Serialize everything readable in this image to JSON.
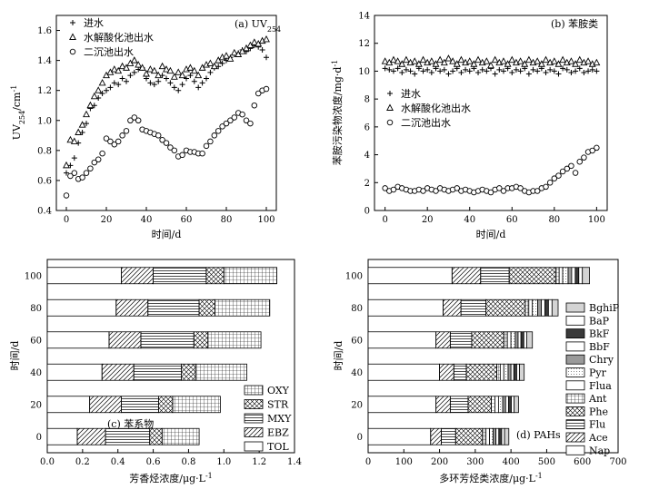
{
  "chart_data": [
    {
      "id": "a",
      "type": "scatter",
      "panel_label": "(a) UV",
      "panel_label_sub": "254",
      "xlabel": "时间/d",
      "ylabel_main": "UV",
      "ylabel_sub": "254",
      "ylabel_unit": "/cm",
      "ylabel_sup": "-1",
      "xlim": [
        -5,
        105
      ],
      "ylim": [
        0.4,
        1.7
      ],
      "xticks": [
        0,
        20,
        40,
        60,
        80,
        100
      ],
      "xtick_labels": [
        "0",
        "20",
        "40",
        "60",
        "80",
        "100"
      ],
      "yticks": [
        0.4,
        0.6,
        0.8,
        1.0,
        1.2,
        1.4,
        1.6
      ],
      "ytick_labels": [
        "0.4",
        "0.6",
        "0.8",
        "1.0",
        "1.2",
        "1.4",
        "1.6"
      ],
      "legend_position": "top-left",
      "series": [
        {
          "name": "进水",
          "marker": "plus",
          "x": [
            0,
            2,
            4,
            6,
            8,
            10,
            12,
            14,
            16,
            18,
            20,
            22,
            24,
            26,
            28,
            30,
            32,
            34,
            36,
            38,
            40,
            42,
            44,
            46,
            48,
            50,
            52,
            54,
            56,
            58,
            60,
            62,
            64,
            66,
            68,
            70,
            72,
            74,
            76,
            78,
            80,
            82,
            84,
            86,
            88,
            90,
            92,
            94,
            96,
            98,
            100
          ],
          "y": [
            0.65,
            0.7,
            0.75,
            0.85,
            0.92,
            0.98,
            1.08,
            1.1,
            1.15,
            1.18,
            1.2,
            1.22,
            1.25,
            1.24,
            1.28,
            1.26,
            1.3,
            1.32,
            1.34,
            1.35,
            1.28,
            1.25,
            1.24,
            1.26,
            1.3,
            1.28,
            1.25,
            1.22,
            1.2,
            1.24,
            1.28,
            1.3,
            1.26,
            1.22,
            1.25,
            1.28,
            1.32,
            1.35,
            1.36,
            1.38,
            1.4,
            1.42,
            1.44,
            1.45,
            1.47,
            1.46,
            1.48,
            1.5,
            1.49,
            1.47,
            1.42
          ]
        },
        {
          "name": "水解酸化池出水",
          "marker": "triangle",
          "x": [
            0,
            2,
            4,
            6,
            8,
            10,
            12,
            14,
            16,
            18,
            20,
            22,
            24,
            26,
            28,
            30,
            32,
            34,
            36,
            38,
            40,
            42,
            44,
            46,
            48,
            50,
            52,
            54,
            56,
            58,
            60,
            62,
            64,
            66,
            68,
            70,
            72,
            74,
            76,
            78,
            80,
            82,
            84,
            86,
            88,
            90,
            92,
            94,
            96,
            98,
            100
          ],
          "y": [
            0.7,
            0.87,
            0.86,
            0.92,
            0.97,
            1.04,
            1.1,
            1.16,
            1.2,
            1.25,
            1.3,
            1.32,
            1.34,
            1.33,
            1.36,
            1.35,
            1.38,
            1.4,
            1.37,
            1.35,
            1.31,
            1.34,
            1.33,
            1.3,
            1.36,
            1.34,
            1.33,
            1.29,
            1.32,
            1.3,
            1.34,
            1.35,
            1.33,
            1.3,
            1.35,
            1.37,
            1.38,
            1.36,
            1.4,
            1.42,
            1.43,
            1.41,
            1.45,
            1.44,
            1.46,
            1.48,
            1.5,
            1.52,
            1.51,
            1.53,
            1.54
          ]
        },
        {
          "name": "二沉池出水",
          "marker": "circle",
          "x": [
            0,
            2,
            4,
            6,
            8,
            10,
            12,
            14,
            16,
            18,
            20,
            22,
            24,
            26,
            28,
            30,
            32,
            34,
            36,
            38,
            40,
            42,
            44,
            46,
            48,
            50,
            52,
            54,
            56,
            58,
            60,
            62,
            64,
            66,
            68,
            70,
            72,
            74,
            76,
            78,
            80,
            82,
            84,
            86,
            88,
            90,
            92,
            94,
            96,
            98,
            100
          ],
          "y": [
            0.5,
            0.63,
            0.65,
            0.61,
            0.62,
            0.65,
            0.68,
            0.72,
            0.74,
            0.78,
            0.88,
            0.86,
            0.84,
            0.86,
            0.9,
            0.93,
            1.0,
            1.02,
            1.0,
            0.94,
            0.93,
            0.92,
            0.91,
            0.9,
            0.87,
            0.85,
            0.82,
            0.8,
            0.76,
            0.77,
            0.8,
            0.79,
            0.79,
            0.78,
            0.78,
            0.83,
            0.86,
            0.9,
            0.93,
            0.96,
            0.98,
            1.0,
            1.02,
            1.05,
            1.04,
            1.0,
            0.98,
            1.1,
            1.18,
            1.2,
            1.21
          ]
        }
      ]
    },
    {
      "id": "b",
      "type": "scatter",
      "panel_label": "(b) 苯胺类",
      "xlabel": "时间/d",
      "ylabel": "苯胺污染物浓度/mg·d",
      "ylabel_sup": "-1",
      "xlim": [
        -5,
        105
      ],
      "ylim": [
        0,
        14
      ],
      "xticks": [
        0,
        20,
        40,
        60,
        80,
        100
      ],
      "xtick_labels": [
        "0",
        "20",
        "40",
        "60",
        "80",
        "100"
      ],
      "yticks": [
        0,
        2,
        4,
        6,
        8,
        10,
        12,
        14
      ],
      "ytick_labels": [
        "0",
        "2",
        "4",
        "6",
        "8",
        "10",
        "12",
        "14"
      ],
      "legend_position": "middle-left",
      "series": [
        {
          "name": "进水",
          "marker": "plus",
          "x": [
            0,
            2,
            4,
            6,
            8,
            10,
            12,
            14,
            16,
            18,
            20,
            22,
            24,
            26,
            28,
            30,
            32,
            34,
            36,
            38,
            40,
            42,
            44,
            46,
            48,
            50,
            52,
            54,
            56,
            58,
            60,
            62,
            64,
            66,
            68,
            70,
            72,
            74,
            76,
            78,
            80,
            82,
            84,
            86,
            88,
            90,
            92,
            94,
            96,
            98,
            100
          ],
          "y": [
            10.2,
            10.1,
            10.0,
            10.2,
            9.9,
            10.1,
            10.0,
            9.8,
            10.2,
            10.0,
            10.1,
            9.9,
            10.2,
            10.0,
            10.1,
            9.8,
            10.0,
            10.2,
            9.9,
            10.1,
            10.0,
            10.2,
            9.9,
            10.1,
            10.0,
            10.2,
            9.8,
            10.1,
            10.0,
            10.2,
            9.9,
            10.1,
            10.0,
            10.2,
            9.8,
            10.1,
            10.0,
            10.2,
            9.9,
            10.1,
            10.0,
            9.8,
            10.2,
            10.1,
            9.9,
            10.0,
            10.2,
            9.9,
            10.0,
            10.1,
            10.0
          ]
        },
        {
          "name": "水解酸化池出水",
          "marker": "triangle",
          "x": [
            0,
            2,
            4,
            6,
            8,
            10,
            12,
            14,
            16,
            18,
            20,
            22,
            24,
            26,
            28,
            30,
            32,
            34,
            36,
            38,
            40,
            42,
            44,
            46,
            48,
            50,
            52,
            54,
            56,
            58,
            60,
            62,
            64,
            66,
            68,
            70,
            72,
            74,
            76,
            78,
            80,
            82,
            84,
            86,
            88,
            90,
            92,
            94,
            96,
            98,
            100
          ],
          "y": [
            10.7,
            10.6,
            10.8,
            10.7,
            10.5,
            10.8,
            10.6,
            10.7,
            10.5,
            10.8,
            10.6,
            10.7,
            10.5,
            10.8,
            10.6,
            10.9,
            10.7,
            10.5,
            10.8,
            10.6,
            10.7,
            10.5,
            10.8,
            10.6,
            10.7,
            10.4,
            10.8,
            10.6,
            10.7,
            10.5,
            10.8,
            10.6,
            10.7,
            10.5,
            10.8,
            10.6,
            10.7,
            10.5,
            10.8,
            10.6,
            10.7,
            10.5,
            10.8,
            10.6,
            10.7,
            10.5,
            10.8,
            10.6,
            10.7,
            10.5,
            10.6
          ]
        },
        {
          "name": "二沉池出水",
          "marker": "circle",
          "x": [
            0,
            2,
            4,
            6,
            8,
            10,
            12,
            14,
            16,
            18,
            20,
            22,
            24,
            26,
            28,
            30,
            32,
            34,
            36,
            38,
            40,
            42,
            44,
            46,
            48,
            50,
            52,
            54,
            56,
            58,
            60,
            62,
            64,
            66,
            68,
            70,
            72,
            74,
            76,
            78,
            80,
            82,
            84,
            86,
            88,
            90,
            92,
            94,
            96,
            98,
            100
          ],
          "y": [
            1.6,
            1.4,
            1.5,
            1.7,
            1.6,
            1.5,
            1.4,
            1.4,
            1.5,
            1.4,
            1.6,
            1.5,
            1.4,
            1.6,
            1.5,
            1.4,
            1.5,
            1.6,
            1.4,
            1.5,
            1.4,
            1.3,
            1.4,
            1.5,
            1.4,
            1.3,
            1.5,
            1.6,
            1.4,
            1.6,
            1.6,
            1.7,
            1.6,
            1.4,
            1.3,
            1.4,
            1.4,
            1.6,
            1.7,
            2.0,
            2.3,
            2.5,
            2.8,
            3.0,
            3.2,
            2.7,
            3.5,
            3.8,
            4.2,
            4.3,
            4.5
          ]
        }
      ]
    },
    {
      "id": "c",
      "type": "bar",
      "orientation": "horizontal",
      "stacked": true,
      "panel_label": "(c) 苯系物",
      "xlabel": "芳香烃浓度/μg·L",
      "xlabel_sup": "-1",
      "ylabel": "时间/d",
      "xlim": [
        0,
        1.4
      ],
      "xticks": [
        0,
        0.2,
        0.4,
        0.6,
        0.8,
        1.0,
        1.2,
        1.4
      ],
      "xtick_labels": [
        "0.0",
        "0.2",
        "0.4",
        "0.6",
        "0.8",
        "1.0",
        "1.2",
        "1.4"
      ],
      "categories": [
        "0",
        "20",
        "40",
        "60",
        "80",
        "100"
      ],
      "legend_position": "right",
      "series": [
        {
          "name": "TOL",
          "pattern": "blank",
          "values": [
            0.17,
            0.24,
            0.31,
            0.35,
            0.39,
            0.42
          ]
        },
        {
          "name": "EBZ",
          "pattern": "diag",
          "values": [
            0.16,
            0.18,
            0.18,
            0.18,
            0.18,
            0.18
          ]
        },
        {
          "name": "MXY",
          "pattern": "hline",
          "values": [
            0.25,
            0.21,
            0.27,
            0.3,
            0.29,
            0.3
          ]
        },
        {
          "name": "STR",
          "pattern": "xhatch",
          "values": [
            0.07,
            0.08,
            0.08,
            0.08,
            0.09,
            0.1
          ]
        },
        {
          "name": "OXY",
          "pattern": "grid",
          "values": [
            0.21,
            0.27,
            0.29,
            0.3,
            0.31,
            0.3
          ]
        }
      ]
    },
    {
      "id": "d",
      "type": "bar",
      "orientation": "horizontal",
      "stacked": true,
      "panel_label": "(d) PAHs",
      "xlabel": "多环芳烃类浓度/μg·L",
      "xlabel_sup": "-1",
      "ylabel": "时间/d",
      "xlim": [
        0,
        700
      ],
      "xticks": [
        0,
        100,
        200,
        300,
        400,
        500,
        600,
        700
      ],
      "xtick_labels": [
        "0",
        "100",
        "200",
        "300",
        "400",
        "500",
        "600",
        "700"
      ],
      "categories": [
        "0",
        "20",
        "40",
        "60",
        "80",
        "100"
      ],
      "legend_position": "right",
      "series": [
        {
          "name": "Nap",
          "pattern": "blank",
          "values": [
            175,
            190,
            200,
            190,
            210,
            235
          ]
        },
        {
          "name": "Ace",
          "pattern": "diag",
          "values": [
            30,
            40,
            40,
            40,
            50,
            80
          ]
        },
        {
          "name": "Flu",
          "pattern": "hline",
          "values": [
            40,
            50,
            35,
            60,
            70,
            80
          ]
        },
        {
          "name": "Phe",
          "pattern": "xhatch",
          "values": [
            75,
            65,
            85,
            90,
            110,
            130
          ]
        },
        {
          "name": "Ant",
          "pattern": "grid",
          "values": [
            10,
            10,
            10,
            10,
            10,
            10
          ]
        },
        {
          "name": "Flua",
          "pattern": "blank",
          "values": [
            10,
            10,
            10,
            10,
            10,
            10
          ]
        },
        {
          "name": "Pyr",
          "pattern": "light",
          "values": [
            10,
            12,
            12,
            12,
            15,
            15
          ]
        },
        {
          "name": "Chry",
          "pattern": "mid",
          "values": [
            8,
            8,
            8,
            8,
            10,
            10
          ]
        },
        {
          "name": "BbF",
          "pattern": "white",
          "values": [
            8,
            8,
            8,
            8,
            10,
            10
          ]
        },
        {
          "name": "BkF",
          "pattern": "dark",
          "values": [
            8,
            8,
            8,
            8,
            10,
            10
          ]
        },
        {
          "name": "BaP",
          "pattern": "white",
          "values": [
            8,
            8,
            8,
            8,
            10,
            10
          ]
        },
        {
          "name": "BghiP",
          "pattern": "pale",
          "values": [
            12,
            12,
            13,
            16,
            17,
            20
          ]
        }
      ]
    }
  ]
}
